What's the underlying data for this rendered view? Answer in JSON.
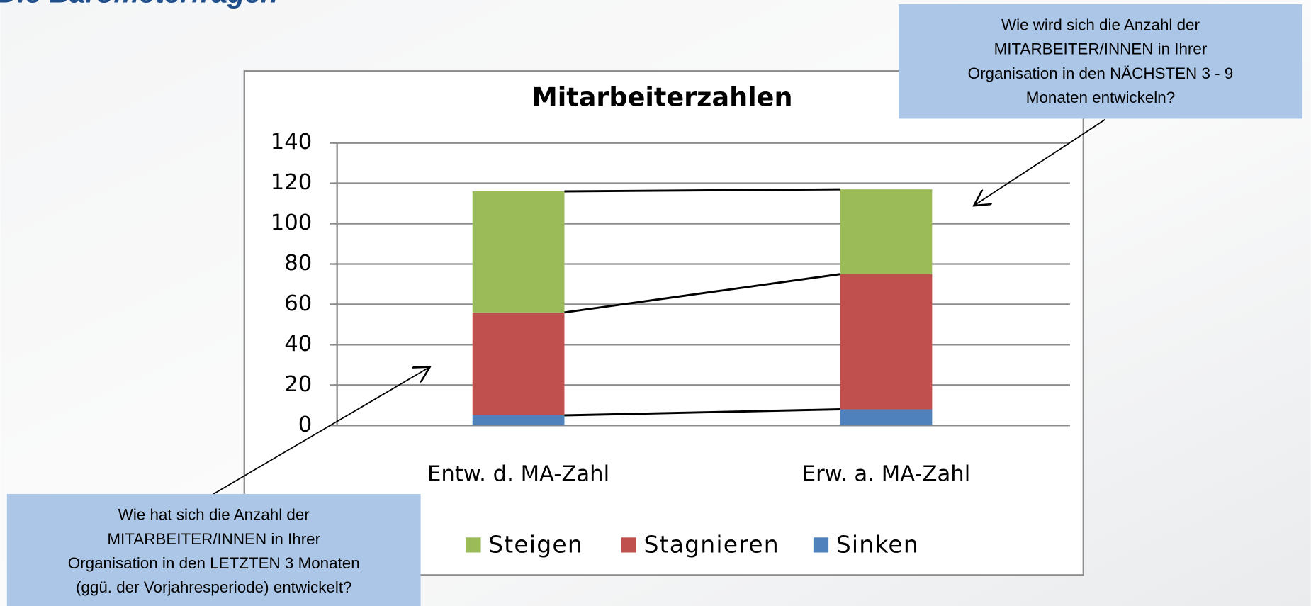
{
  "slide_title": "Die Barometerfragen",
  "chart_data": {
    "type": "stacked_bar",
    "title": "Mitarbeiterzahlen",
    "categories": [
      "Entw. d. MA-Zahl",
      "Erw. a. MA-Zahl"
    ],
    "series": [
      {
        "name": "Sinken",
        "color": "#4f81bd",
        "values": [
          5,
          8
        ]
      },
      {
        "name": "Stagnieren",
        "color": "#c0504d",
        "values": [
          51,
          67
        ]
      },
      {
        "name": "Steigen",
        "color": "#9bbb59",
        "values": [
          60,
          42
        ]
      }
    ],
    "ylim": [
      0,
      140
    ],
    "yticks": [
      0,
      20,
      40,
      60,
      80,
      100,
      120,
      140
    ],
    "grid": true,
    "legend": "bottom",
    "series_lines": true,
    "annotations": [
      {
        "lines": [
          "Wie wird sich die Anzahl der",
          "MITARBEITER/INNEN in Ihrer",
          "Organisation in den NÄCHSTEN 3 - 9",
          "Monaten entwickeln?"
        ]
      },
      {
        "lines": [
          "Wie hat sich die Anzahl der",
          "MITARBEITER/INNEN in Ihrer",
          "Organisation in den LETZTEN 3 Monaten",
          "(ggü. der Vorjahresperiode) entwickelt?"
        ]
      }
    ]
  }
}
